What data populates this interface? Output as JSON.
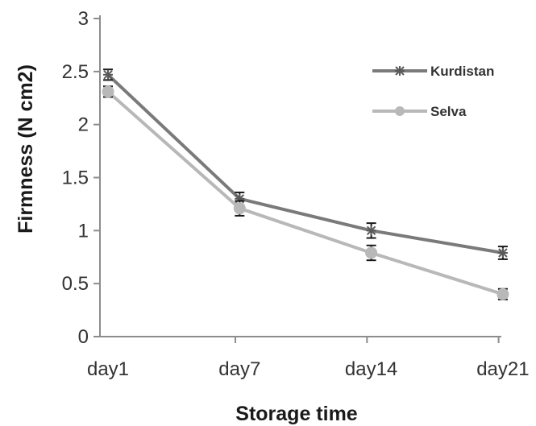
{
  "chart_data": {
    "type": "line",
    "categories": [
      "day1",
      "day7",
      "day14",
      "day21"
    ],
    "xlabel": "Storage time",
    "ylabel": "Firmness (N cm2)",
    "ylim": [
      0,
      3
    ],
    "yticks": [
      "0",
      "0.5",
      "1",
      "1.5",
      "2",
      "2.5",
      "3"
    ],
    "grid": false,
    "legend_position": "top-right",
    "series": [
      {
        "name": "Kurdistan",
        "values": [
          2.47,
          1.3,
          1.0,
          0.79
        ],
        "errors": [
          0.05,
          0.06,
          0.07,
          0.06
        ],
        "color": "#7a7a7a",
        "marker": "asterisk"
      },
      {
        "name": "Selva",
        "values": [
          2.31,
          1.21,
          0.79,
          0.4
        ],
        "errors": [
          0.05,
          0.07,
          0.07,
          0.05
        ],
        "color": "#b8b8b8",
        "marker": "circle"
      }
    ]
  }
}
